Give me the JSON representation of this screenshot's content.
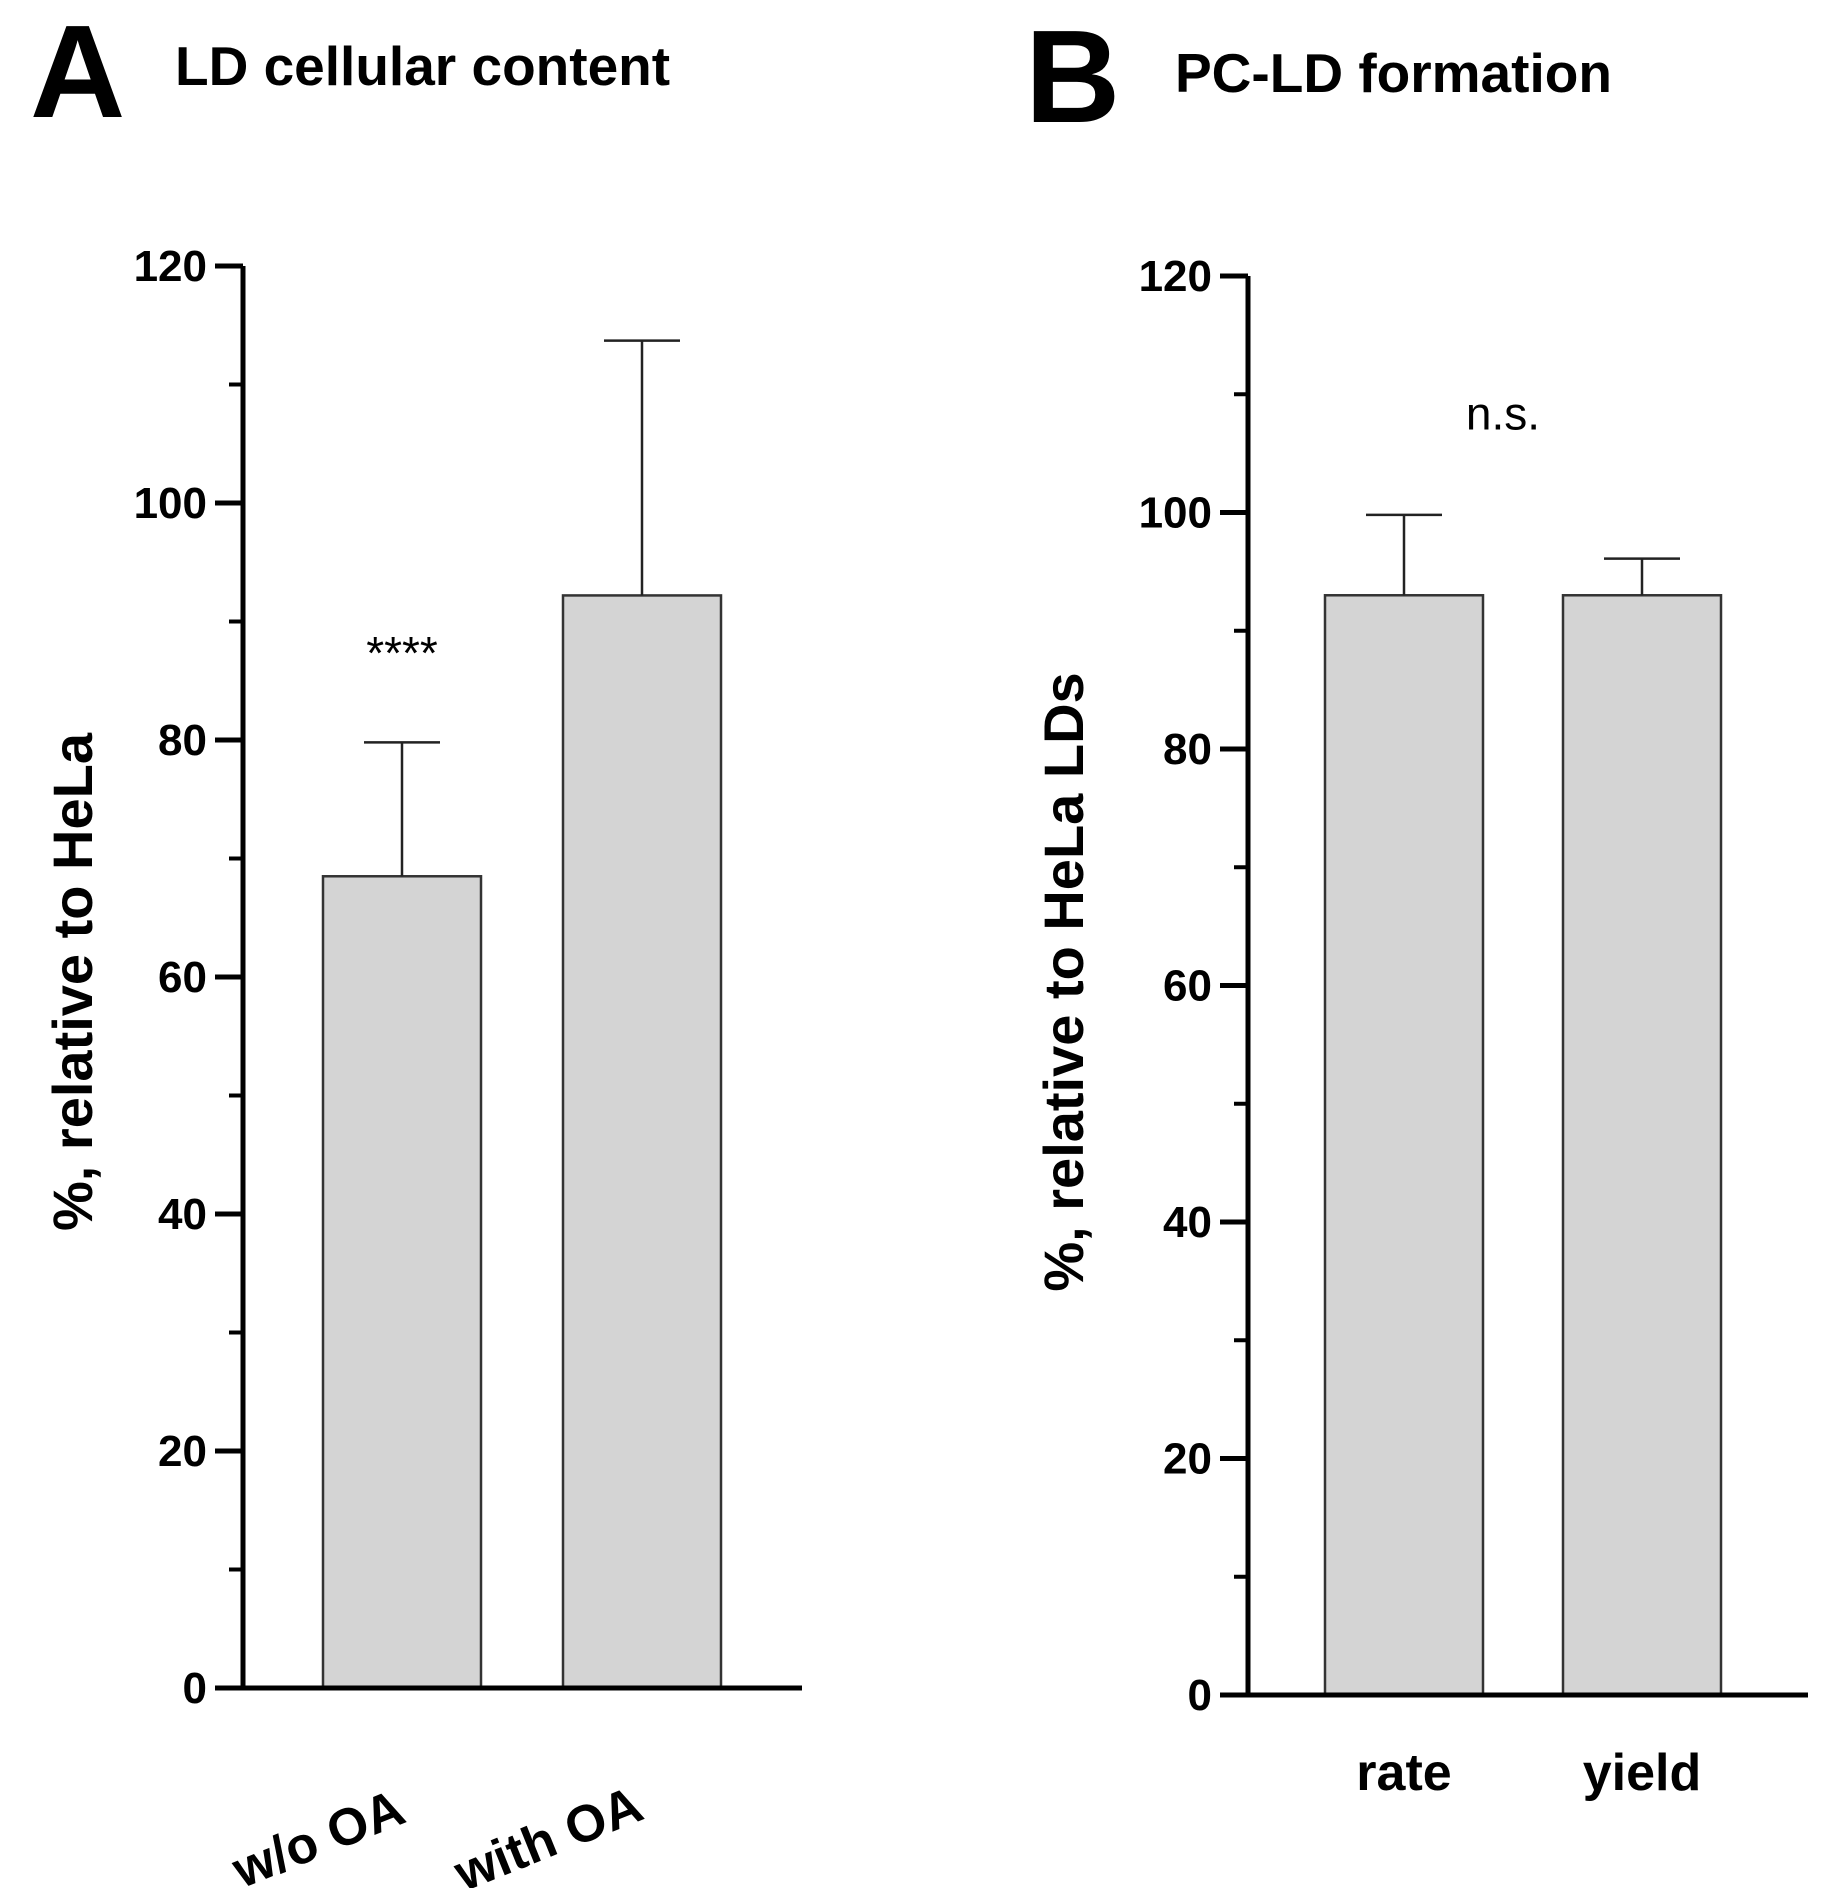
{
  "chart_data": [
    {
      "type": "bar",
      "panel": "A",
      "title": "LD cellular content",
      "ylabel": "%, relative to HeLa",
      "xlabel": "",
      "categories": [
        "w/o OA",
        "with OA"
      ],
      "values": [
        68.5,
        92.2
      ],
      "errors": [
        11.3,
        21.5
      ],
      "ylim": [
        0,
        120
      ],
      "yticks": [
        0,
        20,
        40,
        60,
        80,
        100,
        120
      ],
      "yticks_minor_step": 10,
      "annotations": [
        {
          "text": "****",
          "category": "w/o OA",
          "y": 86
        }
      ],
      "bar_color": "#d4d4d4",
      "grid": false,
      "legend": "none"
    },
    {
      "type": "bar",
      "panel": "B",
      "title": "PC-LD formation",
      "ylabel": "%, relative to HeLa LDs",
      "xlabel": "",
      "categories": [
        "rate",
        "yield"
      ],
      "values": [
        93.0,
        93.0
      ],
      "errors": [
        6.8,
        3.1
      ],
      "ylim": [
        0,
        120
      ],
      "yticks": [
        0,
        20,
        40,
        60,
        80,
        100,
        120
      ],
      "yticks_minor_step": 10,
      "annotations": [
        {
          "text": "n.s.",
          "category": "center",
          "y": 107
        }
      ],
      "bar_color": "#d4d4d4",
      "grid": false,
      "legend": "none"
    }
  ]
}
